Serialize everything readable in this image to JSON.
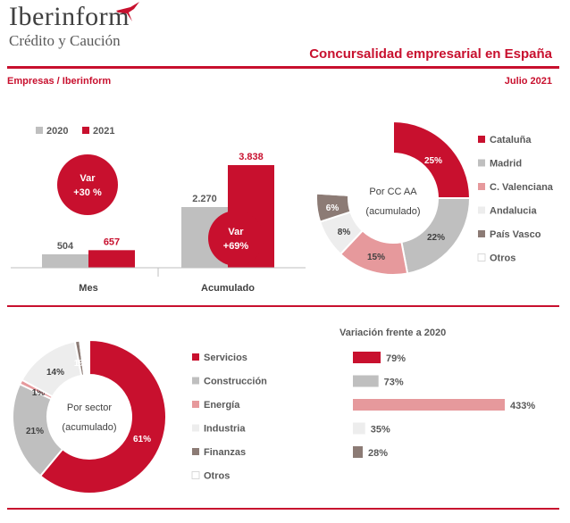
{
  "header": {
    "brand_name": "Iberinform",
    "brand_sub": "Crédito y Caución",
    "title": "Concursalidad empresarial en España",
    "subtitle_left": "Empresas / Iberinform",
    "subtitle_right": "Julio 2021"
  },
  "colors": {
    "accent": "#c8102e",
    "grey": "#bfbfbf",
    "pink": "#e6999c",
    "light": "#ededed",
    "brown": "#8c7b75",
    "white": "#ffffff"
  },
  "chart_data": [
    {
      "type": "bar",
      "categories": [
        "Mes",
        "Acumulado"
      ],
      "series": [
        {
          "name": "2020",
          "values": [
            504,
            2270
          ],
          "labels": [
            "504",
            "2.270"
          ],
          "color": "#bfbfbf"
        },
        {
          "name": "2021",
          "values": [
            657,
            3838
          ],
          "labels": [
            "657",
            "3.838"
          ],
          "color": "#c8102e"
        }
      ],
      "annotations": [
        {
          "category": "Mes",
          "text_line1": "Var",
          "text_line2": "+30 %"
        },
        {
          "category": "Acumulado",
          "text_line1": "Var",
          "text_line2": "+69%"
        }
      ],
      "legend_position": "top-left"
    },
    {
      "type": "pie",
      "center_label_line1": "Por CC AA",
      "center_label_line2": "(acumulado)",
      "slices": [
        {
          "name": "Cataluña",
          "value": 25,
          "label": "25%",
          "color": "#c8102e"
        },
        {
          "name": "Madrid",
          "value": 22,
          "label": "22%",
          "color": "#bfbfbf"
        },
        {
          "name": "C. Valenciana",
          "value": 15,
          "label": "15%",
          "color": "#e6999c"
        },
        {
          "name": "Andalucia",
          "value": 8,
          "label": "8%",
          "color": "#ededed"
        },
        {
          "name": "País Vasco",
          "value": 6,
          "label": "6%",
          "color": "#8c7b75"
        },
        {
          "name": "Otros",
          "value": 24,
          "label": "",
          "color": "#ffffff"
        }
      ],
      "legend_position": "right"
    },
    {
      "type": "pie",
      "center_label_line1": "Por sector",
      "center_label_line2": "(acumulado)",
      "slices": [
        {
          "name": "Servicios",
          "value": 61,
          "label": "61%",
          "color": "#c8102e"
        },
        {
          "name": "Construcción",
          "value": 21,
          "label": "21%",
          "color": "#bfbfbf"
        },
        {
          "name": "Energía",
          "value": 1,
          "label": "1%",
          "color": "#e6999c"
        },
        {
          "name": "Industria",
          "value": 14,
          "label": "14%",
          "color": "#ededed"
        },
        {
          "name": "Finanzas",
          "value": 1,
          "label": "1%",
          "color": "#8c7b75"
        },
        {
          "name": "Otros",
          "value": 2,
          "label": "",
          "color": "#ffffff"
        }
      ],
      "legend_position": "right"
    },
    {
      "type": "bar",
      "orientation": "horizontal",
      "title": "Variación frente a 2020",
      "categories": [
        "Servicios",
        "Construcción",
        "Energía",
        "Industria",
        "Finanzas"
      ],
      "values": [
        79,
        73,
        433,
        35,
        28
      ],
      "labels": [
        "79%",
        "73%",
        "433%",
        "35%",
        "28%"
      ],
      "colors": [
        "#c8102e",
        "#bfbfbf",
        "#e6999c",
        "#ededed",
        "#8c7b75"
      ]
    }
  ]
}
